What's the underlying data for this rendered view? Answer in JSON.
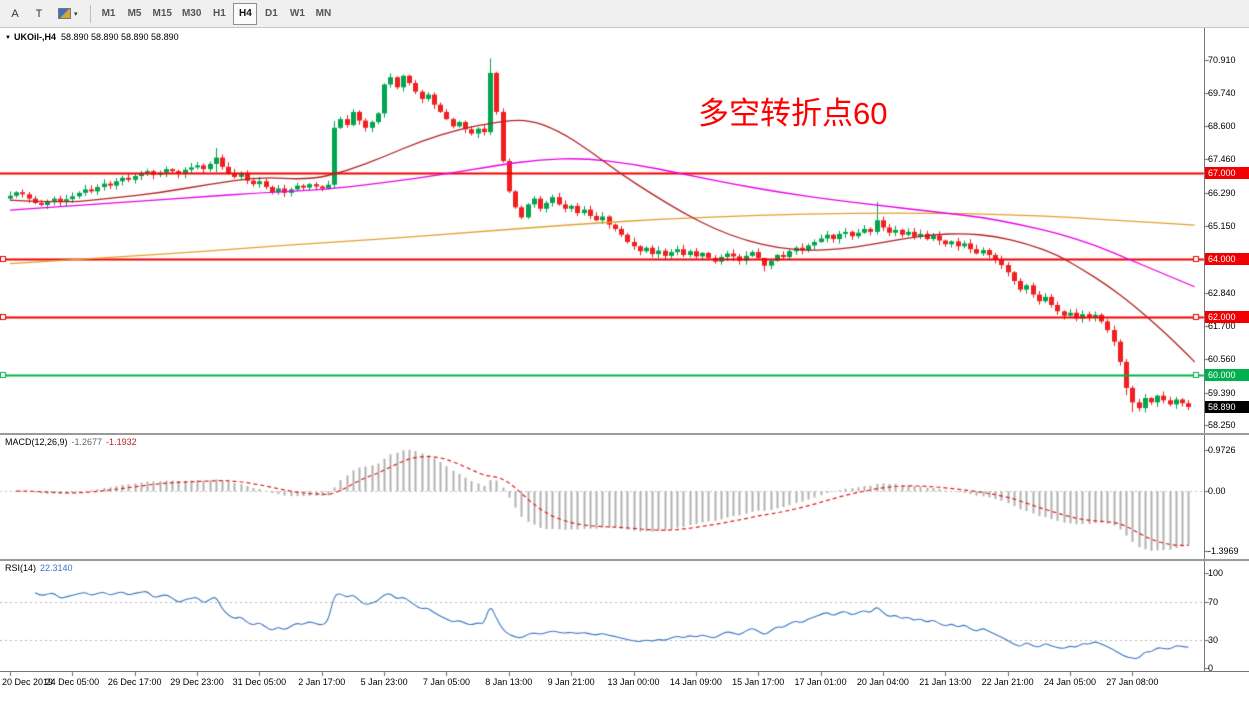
{
  "toolbar": {
    "buttons": [
      {
        "label": "A"
      },
      {
        "label": "T"
      }
    ],
    "caret": "▾",
    "timeframes": [
      "M1",
      "M5",
      "M15",
      "M30",
      "H1",
      "H4",
      "D1",
      "W1",
      "MN"
    ],
    "active_timeframe": "H4"
  },
  "chart": {
    "collapse_marker": "▼",
    "symbol_title": "UKOil-,H4",
    "ohlc_text": "58.890 58.890 58.890 58.890",
    "annotation": {
      "text": "多空转折点60",
      "color": "#ff0000"
    },
    "price_axis_labels": [
      "70.910",
      "69.740",
      "68.600",
      "67.460",
      "66.290",
      "65.150",
      "62.840",
      "61.700",
      "60.560",
      "59.390",
      "58.250"
    ],
    "hlines": [
      {
        "price": 67.0,
        "label": "67.000",
        "color": "#f00000",
        "handles": false
      },
      {
        "price": 64.0,
        "label": "64.000",
        "color": "#f00000",
        "handles": true
      },
      {
        "price": 62.0,
        "label": "62.000",
        "color": "#f00000",
        "handles": true
      },
      {
        "price": 60.0,
        "label": "60.000",
        "color": "#00b04c",
        "handles": true
      }
    ],
    "current_price": {
      "label": "58.890",
      "value": 58.89,
      "bg": "#000000"
    },
    "colors": {
      "up": "#00a550",
      "down": "#f02020",
      "ma_fast": "#b22222",
      "ma_mid": "#e800e8",
      "ma_slow": "#e0a030",
      "macd_hist": "#b0b0b0",
      "macd_signal": "#e02020",
      "rsi": "#3a77c2"
    }
  },
  "macd_panel": {
    "label": "MACD(12,26,9)",
    "value_main": "-1.2677",
    "value_signal": "-1.1932",
    "axis_labels": [
      "0.9726",
      "0.00",
      "-1.3969"
    ]
  },
  "rsi_panel": {
    "label": "RSI(14)",
    "value": "22.3140",
    "axis_labels": [
      "100",
      "70",
      "30",
      "0"
    ],
    "levels": [
      70,
      30
    ]
  },
  "chart_data": {
    "type": "candlestick",
    "title": "UKOil-,H4",
    "symbol": "UKOil-",
    "timeframe": "H4",
    "price_range": [
      58.0,
      71.45
    ],
    "candles_per_x_label": 10,
    "x_labels": [
      "20 Dec 2019",
      "24 Dec 05:00",
      "26 Dec 17:00",
      "29 Dec 23:00",
      "31 Dec 05:00",
      "2 Jan 17:00",
      "5 Jan 23:00",
      "7 Jan 05:00",
      "8 Jan 13:00",
      "9 Jan 21:00",
      "13 Jan 00:00",
      "14 Jan 09:00",
      "15 Jan 17:00",
      "17 Jan 01:00",
      "20 Jan 04:00",
      "21 Jan 13:00",
      "22 Jan 21:00",
      "24 Jan 05:00",
      "27 Jan 08:00"
    ],
    "first_open": 66.1,
    "closes": [
      66.2,
      66.32,
      66.25,
      66.1,
      65.95,
      65.88,
      66.02,
      66.1,
      65.98,
      66.08,
      66.18,
      66.3,
      66.42,
      66.35,
      66.5,
      66.62,
      66.55,
      66.7,
      66.82,
      66.75,
      66.88,
      66.95,
      67.05,
      66.92,
      67.0,
      67.12,
      67.05,
      66.95,
      67.1,
      67.18,
      67.25,
      67.12,
      67.3,
      67.52,
      67.2,
      66.98,
      66.85,
      66.95,
      66.72,
      66.6,
      66.7,
      66.5,
      66.32,
      66.45,
      66.3,
      66.42,
      66.55,
      66.48,
      66.6,
      66.52,
      66.45,
      66.58,
      68.55,
      68.85,
      68.65,
      69.1,
      68.8,
      68.55,
      68.75,
      69.05,
      70.05,
      70.3,
      69.95,
      70.35,
      70.1,
      69.8,
      69.55,
      69.7,
      69.35,
      69.1,
      68.85,
      68.6,
      68.75,
      68.5,
      68.35,
      68.52,
      68.4,
      70.45,
      69.1,
      67.4,
      66.35,
      65.8,
      65.45,
      65.9,
      66.1,
      65.75,
      65.95,
      66.15,
      65.9,
      65.75,
      65.85,
      65.6,
      65.72,
      65.5,
      65.35,
      65.48,
      65.2,
      65.05,
      64.85,
      64.6,
      64.45,
      64.28,
      64.4,
      64.18,
      64.3,
      64.12,
      64.25,
      64.35,
      64.15,
      64.28,
      64.1,
      64.22,
      64.05,
      63.92,
      64.08,
      64.2,
      64.1,
      63.95,
      64.12,
      64.25,
      64.05,
      63.78,
      63.95,
      64.15,
      64.08,
      64.28,
      64.4,
      64.3,
      64.48,
      64.6,
      64.72,
      64.85,
      64.7,
      64.88,
      64.95,
      64.8,
      64.92,
      65.05,
      64.95,
      65.35,
      65.1,
      64.92,
      65.02,
      64.85,
      64.95,
      64.78,
      64.88,
      64.7,
      64.82,
      64.65,
      64.52,
      64.62,
      64.45,
      64.55,
      64.35,
      64.2,
      64.32,
      64.15,
      63.98,
      63.8,
      63.55,
      63.25,
      62.95,
      63.1,
      62.78,
      62.55,
      62.7,
      62.42,
      62.2,
      62.05,
      62.15,
      61.95,
      62.1,
      61.98,
      62.08,
      61.85,
      61.55,
      61.15,
      60.45,
      59.55,
      59.05,
      58.85,
      59.2,
      59.05,
      59.28,
      59.12,
      58.98,
      59.15,
      59.02,
      58.89
    ],
    "wick_overrides": {
      "33": [
        67.85,
        67.02
      ],
      "52": [
        68.78,
        66.45
      ],
      "77": [
        70.95,
        68.3
      ],
      "121": [
        63.98,
        63.58
      ],
      "139": [
        65.98,
        64.86
      ],
      "179": [
        60.55,
        59.3
      ],
      "180": [
        59.62,
        58.72
      ]
    },
    "ma_lines": [
      {
        "name": "slow-ma",
        "color": "#e0a030",
        "points": [
          [
            0,
            63.85
          ],
          [
            15,
            64.05
          ],
          [
            30,
            64.25
          ],
          [
            45,
            64.5
          ],
          [
            60,
            64.7
          ],
          [
            75,
            64.95
          ],
          [
            90,
            65.2
          ],
          [
            105,
            65.4
          ],
          [
            120,
            65.52
          ],
          [
            135,
            65.6
          ],
          [
            150,
            65.6
          ],
          [
            160,
            65.55
          ],
          [
            170,
            65.45
          ],
          [
            180,
            65.32
          ],
          [
            190,
            65.18
          ]
        ]
      },
      {
        "name": "mid-ma",
        "color": "#e800e8",
        "points": [
          [
            0,
            65.7
          ],
          [
            10,
            65.85
          ],
          [
            20,
            66.0
          ],
          [
            30,
            66.15
          ],
          [
            40,
            66.3
          ],
          [
            50,
            66.4
          ],
          [
            60,
            66.65
          ],
          [
            70,
            66.95
          ],
          [
            78,
            67.25
          ],
          [
            85,
            67.45
          ],
          [
            92,
            67.5
          ],
          [
            100,
            67.3
          ],
          [
            108,
            66.95
          ],
          [
            116,
            66.6
          ],
          [
            124,
            66.3
          ],
          [
            132,
            66.05
          ],
          [
            140,
            65.85
          ],
          [
            148,
            65.65
          ],
          [
            156,
            65.45
          ],
          [
            162,
            65.2
          ],
          [
            168,
            64.9
          ],
          [
            174,
            64.5
          ],
          [
            180,
            63.95
          ],
          [
            185,
            63.5
          ],
          [
            190,
            63.05
          ]
        ]
      },
      {
        "name": "fast-ma",
        "color": "#b22222",
        "points": [
          [
            0,
            66.05
          ],
          [
            8,
            65.95
          ],
          [
            16,
            66.1
          ],
          [
            24,
            66.3
          ],
          [
            32,
            66.6
          ],
          [
            40,
            66.85
          ],
          [
            48,
            66.75
          ],
          [
            54,
            67.05
          ],
          [
            60,
            67.55
          ],
          [
            66,
            68.1
          ],
          [
            72,
            68.5
          ],
          [
            78,
            68.75
          ],
          [
            83,
            68.85
          ],
          [
            88,
            68.45
          ],
          [
            93,
            67.75
          ],
          [
            98,
            66.95
          ],
          [
            103,
            66.25
          ],
          [
            108,
            65.6
          ],
          [
            113,
            65.05
          ],
          [
            118,
            64.65
          ],
          [
            123,
            64.4
          ],
          [
            128,
            64.3
          ],
          [
            133,
            64.35
          ],
          [
            138,
            64.5
          ],
          [
            143,
            64.7
          ],
          [
            148,
            64.85
          ],
          [
            153,
            64.9
          ],
          [
            158,
            64.8
          ],
          [
            163,
            64.55
          ],
          [
            168,
            64.15
          ],
          [
            172,
            63.65
          ],
          [
            176,
            63.1
          ],
          [
            180,
            62.45
          ],
          [
            184,
            61.7
          ],
          [
            187,
            61.1
          ],
          [
            190,
            60.45
          ]
        ]
      }
    ],
    "indicators": [
      {
        "name": "MACD",
        "params": [
          12,
          26,
          9
        ],
        "last_values": [
          -1.2677,
          -1.1932
        ],
        "axis_range": [
          -1.3969,
          0.9726
        ]
      },
      {
        "name": "RSI",
        "params": [
          14
        ],
        "last_value": 22.314,
        "levels": [
          30,
          70
        ],
        "axis_range": [
          0,
          100
        ]
      }
    ]
  }
}
